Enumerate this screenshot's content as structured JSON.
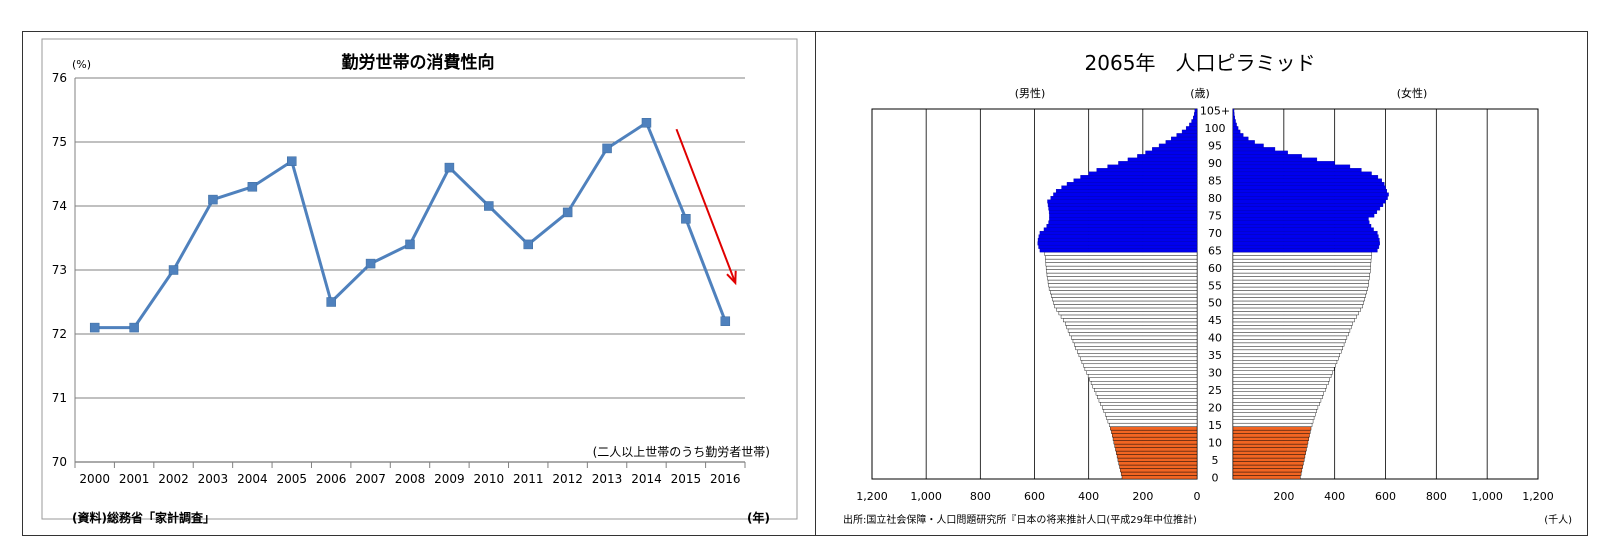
{
  "chart_data": [
    {
      "type": "line",
      "title": "勤労世帯の消費性向",
      "y_unit": "(%)",
      "x_unit": "(年)",
      "annotation": "(二人以上世帯のうち勤労者世帯)",
      "source": "(資料)総務省「家計調査」",
      "x": [
        "2000",
        "2001",
        "2002",
        "2003",
        "2004",
        "2005",
        "2006",
        "2007",
        "2008",
        "2009",
        "2010",
        "2011",
        "2012",
        "2013",
        "2014",
        "2015",
        "2016"
      ],
      "values": [
        72.1,
        72.1,
        73.0,
        74.1,
        74.3,
        74.7,
        72.5,
        73.1,
        73.4,
        74.6,
        74.0,
        73.4,
        73.9,
        74.9,
        75.3,
        73.8,
        72.2
      ],
      "y_ticks": [
        70,
        71,
        72,
        73,
        74,
        75,
        76
      ],
      "ylim": [
        70,
        76
      ],
      "grid": true,
      "line_color": "#4f81bd",
      "arrow_color": "#e00000",
      "trend_arrow": {
        "from": [
          "2014",
          75.2
        ],
        "to": [
          "2016",
          72.8
        ]
      }
    },
    {
      "type": "bar",
      "orientation": "horizontal",
      "title": "2065年　人口ピラミッド",
      "male_label": "(男性)",
      "female_label": "(女性)",
      "age_unit": "(歳)",
      "x_unit": "(千人)",
      "source": "出所:国立社会保障・人口問題研究所『日本の将来推計人口(平成29年中位推計)",
      "age_ticks": [
        "0",
        "5",
        "10",
        "15",
        "20",
        "25",
        "30",
        "35",
        "40",
        "45",
        "50",
        "55",
        "60",
        "65",
        "70",
        "75",
        "80",
        "85",
        "90",
        "95",
        "100",
        "105+"
      ],
      "x_ticks": [
        "1,200",
        "1,000",
        "800",
        "600",
        "400",
        "200",
        "0",
        "200",
        "400",
        "600",
        "800",
        "1,000",
        "1,200"
      ],
      "xlim": [
        0,
        1200
      ],
      "colors": {
        "child": "#f26522",
        "working": "#ffffff",
        "elderly": "#0000ee"
      },
      "ages": [
        0,
        1,
        2,
        3,
        4,
        5,
        6,
        7,
        8,
        9,
        10,
        11,
        12,
        13,
        14,
        15,
        16,
        17,
        18,
        19,
        20,
        21,
        22,
        23,
        24,
        25,
        26,
        27,
        28,
        29,
        30,
        31,
        32,
        33,
        34,
        35,
        36,
        37,
        38,
        39,
        40,
        41,
        42,
        43,
        44,
        45,
        46,
        47,
        48,
        49,
        50,
        51,
        52,
        53,
        54,
        55,
        56,
        57,
        58,
        59,
        60,
        61,
        62,
        63,
        64,
        65,
        66,
        67,
        68,
        69,
        70,
        71,
        72,
        73,
        74,
        75,
        76,
        77,
        78,
        79,
        80,
        81,
        82,
        83,
        84,
        85,
        86,
        87,
        88,
        89,
        90,
        91,
        92,
        93,
        94,
        95,
        96,
        97,
        98,
        99,
        100,
        101,
        102,
        103,
        104,
        105
      ],
      "male": [
        277,
        280,
        283,
        286,
        289,
        292,
        295,
        298,
        301,
        304,
        307,
        310,
        313,
        316,
        320,
        324,
        329,
        334,
        339,
        344,
        350,
        356,
        362,
        368,
        373,
        379,
        385,
        391,
        396,
        402,
        408,
        414,
        419,
        425,
        430,
        436,
        442,
        448,
        453,
        458,
        464,
        470,
        476,
        481,
        486,
        494,
        502,
        510,
        518,
        526,
        530,
        534,
        538,
        542,
        546,
        548,
        550,
        552,
        554,
        556,
        557,
        558,
        559,
        560,
        562,
        580,
        585,
        588,
        587,
        584,
        580,
        565,
        555,
        548,
        545,
        545,
        546,
        548,
        550,
        552,
        540,
        530,
        520,
        500,
        480,
        455,
        430,
        400,
        370,
        330,
        290,
        255,
        220,
        190,
        165,
        140,
        115,
        95,
        75,
        55,
        40,
        28,
        20,
        14,
        10,
        8
      ],
      "female": [
        265,
        268,
        271,
        274,
        277,
        280,
        283,
        286,
        289,
        292,
        295,
        298,
        301,
        304,
        307,
        311,
        315,
        319,
        324,
        329,
        334,
        340,
        346,
        352,
        357,
        363,
        369,
        375,
        380,
        386,
        392,
        398,
        403,
        409,
        414,
        420,
        426,
        432,
        437,
        442,
        448,
        454,
        460,
        465,
        470,
        478,
        486,
        494,
        502,
        510,
        514,
        518,
        522,
        526,
        530,
        532,
        534,
        536,
        538,
        540,
        541,
        542,
        543,
        544,
        546,
        568,
        574,
        577,
        576,
        572,
        568,
        553,
        543,
        536,
        533,
        555,
        566,
        578,
        590,
        600,
        608,
        612,
        605,
        600,
        595,
        585,
        570,
        545,
        505,
        460,
        400,
        330,
        270,
        215,
        165,
        120,
        85,
        60,
        40,
        28,
        20,
        14,
        10,
        7,
        5,
        4
      ]
    }
  ]
}
